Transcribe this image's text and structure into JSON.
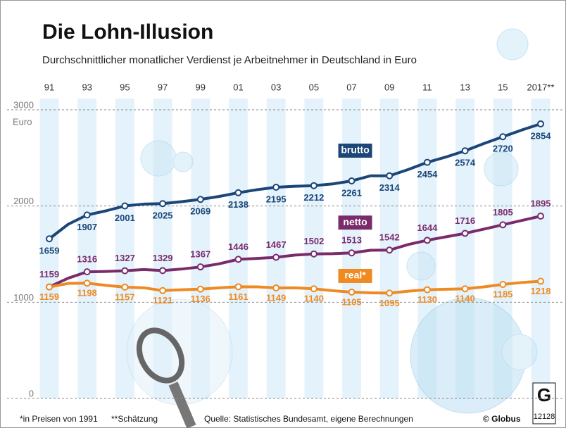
{
  "chart_data": {
    "type": "line",
    "title": "Die Lohn-Illusion",
    "subtitle": "Durchschnittlicher monatlicher Verdienst je Arbeitnehmer in Deutschland in Euro",
    "y_unit": "Euro",
    "categories": [
      "91",
      null,
      "93",
      null,
      "95",
      null,
      "97",
      null,
      "99",
      null,
      "01",
      null,
      "03",
      null,
      "05",
      null,
      "07",
      null,
      "09",
      null,
      "11",
      null,
      "13",
      null,
      "15",
      null,
      "2017**"
    ],
    "series": [
      {
        "name": "brutto",
        "color": "#1b4677",
        "values": [
          1659,
          1810,
          1907,
          1950,
          2001,
          2020,
          2025,
          2045,
          2069,
          2100,
          2138,
          2170,
          2195,
          2205,
          2212,
          2230,
          2261,
          2314,
          2314,
          2380,
          2454,
          2510,
          2574,
          2650,
          2720,
          2790,
          2854
        ]
      },
      {
        "name": "netto",
        "color": "#7a2b6b",
        "values": [
          1159,
          1250,
          1316,
          1320,
          1327,
          1340,
          1329,
          1345,
          1367,
          1400,
          1446,
          1455,
          1467,
          1490,
          1502,
          1505,
          1513,
          1540,
          1542,
          1600,
          1644,
          1680,
          1716,
          1760,
          1805,
          1850,
          1895
        ]
      },
      {
        "name": "real*",
        "color": "#ef8a22",
        "values": [
          1159,
          1195,
          1198,
          1175,
          1157,
          1150,
          1121,
          1130,
          1136,
          1150,
          1161,
          1160,
          1149,
          1150,
          1140,
          1120,
          1105,
          1098,
          1095,
          1115,
          1130,
          1135,
          1140,
          1160,
          1185,
          1205,
          1218
        ]
      }
    ],
    "ylim": [
      0,
      3100
    ],
    "yticks": [
      0,
      1000,
      2000,
      3000
    ],
    "grid": true,
    "footnotes": [
      "*in Preisen von 1991",
      "**Schätzung",
      "Quelle: Statistisches Bundesamt, eigene Berechnungen"
    ],
    "credit": "© Globus",
    "graphic_number": "12128"
  }
}
